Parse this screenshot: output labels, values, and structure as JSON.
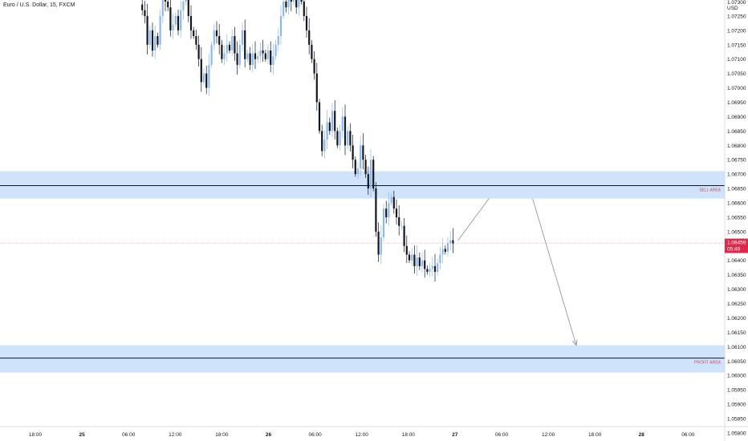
{
  "header": {
    "title": "Euro / U.S. Dollar, 15, FXCM"
  },
  "price_axis": {
    "currency": "USD",
    "labels": [
      "1.07300",
      "1.07250",
      "1.07200",
      "1.07150",
      "1.07100",
      "1.07050",
      "1.07000",
      "1.06950",
      "1.06900",
      "1.06850",
      "1.06800",
      "1.06750",
      "1.06700",
      "1.06650",
      "1.06600",
      "1.06550",
      "1.06500",
      "1.06450",
      "1.06400",
      "1.06350",
      "1.06300",
      "1.06250",
      "1.06200",
      "1.06150",
      "1.06100",
      "1.06050",
      "1.06000",
      "1.05950",
      "1.05900",
      "1.05850",
      "1.05800"
    ]
  },
  "time_axis": {
    "labels": [
      "18:00",
      "25",
      "06:00",
      "12:00",
      "18:00",
      "26",
      "06:00",
      "12:00",
      "18:00",
      "27",
      "06:00",
      "12:00",
      "18:00",
      "28",
      "06:00"
    ]
  },
  "current_price": {
    "value": "1.06459",
    "countdown": "05:49",
    "color": "#e0284a"
  },
  "zones": [
    {
      "name": "SELL AREA",
      "label": "SELL AREA",
      "low": 1.06615,
      "high": 1.0671,
      "line": 1.0666
    },
    {
      "name": "PROFIT AREA",
      "label": "PROFIT AREA",
      "low": 1.0601,
      "high": 1.06105,
      "line": 1.0606
    }
  ],
  "colors": {
    "zone_fill": "#cfe3fb",
    "candle_dark": "#131722",
    "candle_light": "#8db8ea",
    "arrow": "#8a8e99",
    "label_red": "#d04a5a"
  },
  "chart_data": {
    "type": "candlestick",
    "title": "Euro / U.S. Dollar, 15, FXCM",
    "ylabel": "USD",
    "ylim": [
      1.0576,
      1.0734
    ],
    "closes": [
      1.0729,
      1.0727,
      1.0725,
      1.0715,
      1.072,
      1.0713,
      1.0718,
      1.0715,
      1.0725,
      1.0732,
      1.073,
      1.0728,
      1.072,
      1.0722,
      1.0725,
      1.072,
      1.0727,
      1.073,
      1.0732,
      1.0725,
      1.072,
      1.0718,
      1.0715,
      1.071,
      1.0702,
      1.0705,
      1.07,
      1.0708,
      1.0715,
      1.072,
      1.0718,
      1.0715,
      1.071,
      1.0712,
      1.0715,
      1.0713,
      1.0718,
      1.0712,
      1.0708,
      1.0715,
      1.072,
      1.071,
      1.0712,
      1.0708,
      1.0712,
      1.071,
      1.0711,
      1.0713,
      1.0712,
      1.071,
      1.0713,
      1.0708,
      1.0711,
      1.0715,
      1.0718,
      1.0725,
      1.073,
      1.0728,
      1.0733,
      1.073,
      1.0732,
      1.0728,
      1.0731,
      1.073,
      1.0725,
      1.072,
      1.0715,
      1.071,
      1.0705,
      1.0695,
      1.0685,
      1.0678,
      1.0682,
      1.0688,
      1.0685,
      1.0692,
      1.0685,
      1.068,
      1.0685,
      1.069,
      1.068,
      1.0685,
      1.068,
      1.0675,
      1.067,
      1.0672,
      1.068,
      1.0675,
      1.067,
      1.0665,
      1.0675,
      1.0665,
      1.065,
      1.0642,
      1.0648,
      1.0658,
      1.0655,
      1.066,
      1.0662,
      1.0658,
      1.0655,
      1.0652,
      1.0652,
      1.0645,
      1.0642,
      1.064,
      1.0642,
      1.0638,
      1.0641,
      1.0638,
      1.064,
      1.0637,
      1.0636,
      1.0637,
      1.0638,
      1.0636,
      1.0639,
      1.0642,
      1.0644,
      1.0643,
      1.0646,
      1.0647,
      1.06459
    ],
    "projection": [
      {
        "time_index": 124,
        "price": 1.0647
      },
      {
        "time_index": 136,
        "price": 1.06615
      },
      {
        "time_index": 153,
        "price": 1.06615
      },
      {
        "time_index": 170,
        "price": 1.06105
      }
    ],
    "horizontal_lines": [
      1.0666,
      1.0606,
      1.06459
    ],
    "grid": false,
    "legend": "none"
  }
}
